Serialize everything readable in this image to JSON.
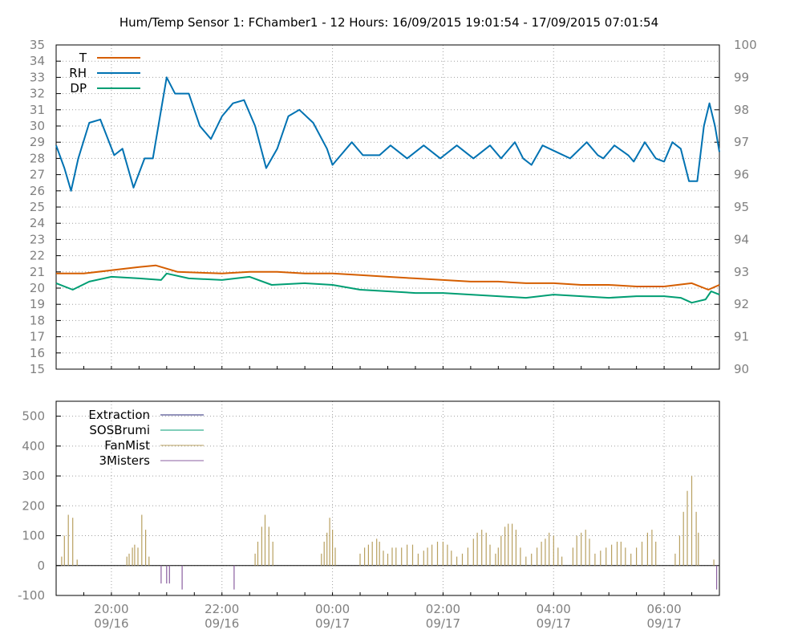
{
  "title": "Hum/Temp Sensor 1: FChamber1 - 12 Hours: 16/09/2015 19:01:54 - 17/09/2015 07:01:54",
  "chart_data": [
    {
      "type": "line",
      "title": "Hum/Temp Sensor 1: FChamber1 - 12 Hours: 16/09/2015 19:01:54 - 17/09/2015 07:01:54",
      "ylim": [
        15,
        35
      ],
      "y2lim": [
        90,
        100
      ],
      "y_ticks": [
        15,
        16,
        17,
        18,
        19,
        20,
        21,
        22,
        23,
        24,
        25,
        26,
        27,
        28,
        29,
        30,
        31,
        32,
        33,
        34,
        35
      ],
      "y2_ticks": [
        90,
        91,
        92,
        93,
        94,
        95,
        96,
        97,
        98,
        99,
        100
      ],
      "grid": true,
      "legend_position": "top-left",
      "series": [
        {
          "name": "T",
          "axis": "y",
          "color": "#d55e00",
          "points": [
            [
              0,
              20.9
            ],
            [
              0.5,
              20.9
            ],
            [
              1,
              21.1
            ],
            [
              1.5,
              21.3
            ],
            [
              1.8,
              21.4
            ],
            [
              2.2,
              21.0
            ],
            [
              3,
              20.9
            ],
            [
              3.5,
              21.0
            ],
            [
              4,
              21.0
            ],
            [
              4.5,
              20.9
            ],
            [
              5,
              20.9
            ],
            [
              5.5,
              20.8
            ],
            [
              6,
              20.7
            ],
            [
              6.5,
              20.6
            ],
            [
              7,
              20.5
            ],
            [
              7.5,
              20.4
            ],
            [
              8,
              20.4
            ],
            [
              8.5,
              20.3
            ],
            [
              9,
              20.3
            ],
            [
              9.5,
              20.2
            ],
            [
              10,
              20.2
            ],
            [
              10.5,
              20.1
            ],
            [
              11,
              20.1
            ],
            [
              11.5,
              20.3
            ],
            [
              11.8,
              19.9
            ],
            [
              12,
              20.2
            ]
          ]
        },
        {
          "name": "RH",
          "axis": "y2",
          "color": "#0072b2",
          "points": [
            [
              0,
              96.9
            ],
            [
              0.15,
              96.2
            ],
            [
              0.27,
              95.5
            ],
            [
              0.4,
              96.5
            ],
            [
              0.6,
              97.6
            ],
            [
              0.8,
              97.7
            ],
            [
              1.05,
              96.6
            ],
            [
              1.2,
              96.8
            ],
            [
              1.4,
              95.6
            ],
            [
              1.6,
              96.5
            ],
            [
              1.75,
              96.5
            ],
            [
              1.9,
              98.0
            ],
            [
              2.0,
              99.0
            ],
            [
              2.15,
              98.5
            ],
            [
              2.4,
              98.5
            ],
            [
              2.6,
              97.5
            ],
            [
              2.8,
              97.1
            ],
            [
              3.0,
              97.8
            ],
            [
              3.2,
              98.2
            ],
            [
              3.4,
              98.3
            ],
            [
              3.6,
              97.5
            ],
            [
              3.8,
              96.2
            ],
            [
              4.0,
              96.8
            ],
            [
              4.2,
              97.8
            ],
            [
              4.4,
              98.0
            ],
            [
              4.65,
              97.6
            ],
            [
              4.9,
              96.8
            ],
            [
              5.0,
              96.3
            ],
            [
              5.15,
              96.6
            ],
            [
              5.35,
              97.0
            ],
            [
              5.55,
              96.6
            ],
            [
              5.85,
              96.6
            ],
            [
              6.05,
              96.9
            ],
            [
              6.35,
              96.5
            ],
            [
              6.65,
              96.9
            ],
            [
              6.95,
              96.5
            ],
            [
              7.25,
              96.9
            ],
            [
              7.55,
              96.5
            ],
            [
              7.85,
              96.9
            ],
            [
              8.05,
              96.5
            ],
            [
              8.3,
              97.0
            ],
            [
              8.45,
              96.5
            ],
            [
              8.6,
              96.3
            ],
            [
              8.8,
              96.9
            ],
            [
              9.05,
              96.7
            ],
            [
              9.3,
              96.5
            ],
            [
              9.6,
              97.0
            ],
            [
              9.8,
              96.6
            ],
            [
              9.9,
              96.5
            ],
            [
              10.1,
              96.9
            ],
            [
              10.35,
              96.6
            ],
            [
              10.45,
              96.4
            ],
            [
              10.65,
              97.0
            ],
            [
              10.85,
              96.5
            ],
            [
              11.0,
              96.4
            ],
            [
              11.15,
              97.0
            ],
            [
              11.3,
              96.8
            ],
            [
              11.45,
              95.8
            ],
            [
              11.6,
              95.8
            ],
            [
              11.72,
              97.5
            ],
            [
              11.82,
              98.2
            ],
            [
              11.92,
              97.5
            ],
            [
              12,
              96.7
            ]
          ]
        },
        {
          "name": "DP",
          "axis": "y",
          "color": "#009e73",
          "points": [
            [
              0,
              20.3
            ],
            [
              0.3,
              19.9
            ],
            [
              0.6,
              20.4
            ],
            [
              1,
              20.7
            ],
            [
              1.5,
              20.6
            ],
            [
              1.9,
              20.5
            ],
            [
              2.0,
              20.9
            ],
            [
              2.4,
              20.6
            ],
            [
              3,
              20.5
            ],
            [
              3.5,
              20.7
            ],
            [
              3.9,
              20.2
            ],
            [
              4.5,
              20.3
            ],
            [
              5,
              20.2
            ],
            [
              5.5,
              19.9
            ],
            [
              6,
              19.8
            ],
            [
              6.5,
              19.7
            ],
            [
              7,
              19.7
            ],
            [
              7.5,
              19.6
            ],
            [
              8,
              19.5
            ],
            [
              8.5,
              19.4
            ],
            [
              9,
              19.6
            ],
            [
              9.5,
              19.5
            ],
            [
              10,
              19.4
            ],
            [
              10.5,
              19.5
            ],
            [
              11,
              19.5
            ],
            [
              11.3,
              19.4
            ],
            [
              11.5,
              19.1
            ],
            [
              11.75,
              19.3
            ],
            [
              11.85,
              19.8
            ],
            [
              12,
              19.6
            ]
          ]
        }
      ]
    },
    {
      "type": "bar",
      "ylim": [
        -100,
        550
      ],
      "y_ticks": [
        -100,
        0,
        100,
        200,
        300,
        400,
        500
      ],
      "x_ticks": [
        {
          "hour": 1,
          "time": "20:00",
          "date": "09/16"
        },
        {
          "hour": 3,
          "time": "22:00",
          "date": "09/16"
        },
        {
          "hour": 5,
          "time": "00:00",
          "date": "09/17"
        },
        {
          "hour": 7,
          "time": "02:00",
          "date": "09/17"
        },
        {
          "hour": 9,
          "time": "04:00",
          "date": "09/17"
        },
        {
          "hour": 11,
          "time": "06:00",
          "date": "09/17"
        }
      ],
      "grid": true,
      "legend_position": "top-left",
      "series": [
        {
          "name": "Extraction",
          "color": "#2a2a7a",
          "points": []
        },
        {
          "name": "SOSBrumi",
          "color": "#009e73",
          "points": []
        },
        {
          "name": "FanMist",
          "color": "#b8a060",
          "points": [
            [
              0.1,
              30
            ],
            [
              0.15,
              100
            ],
            [
              0.22,
              170
            ],
            [
              0.3,
              160
            ],
            [
              0.38,
              20
            ],
            [
              1.28,
              30
            ],
            [
              1.32,
              40
            ],
            [
              1.38,
              60
            ],
            [
              1.42,
              70
            ],
            [
              1.48,
              60
            ],
            [
              1.55,
              170
            ],
            [
              1.62,
              120
            ],
            [
              1.68,
              30
            ],
            [
              3.6,
              40
            ],
            [
              3.65,
              80
            ],
            [
              3.72,
              130
            ],
            [
              3.78,
              170
            ],
            [
              3.85,
              130
            ],
            [
              3.92,
              80
            ],
            [
              4.8,
              40
            ],
            [
              4.85,
              80
            ],
            [
              4.9,
              110
            ],
            [
              4.95,
              160
            ],
            [
              5.0,
              120
            ],
            [
              5.05,
              60
            ],
            [
              5.5,
              40
            ],
            [
              5.58,
              60
            ],
            [
              5.65,
              70
            ],
            [
              5.72,
              80
            ],
            [
              5.8,
              90
            ],
            [
              5.85,
              80
            ],
            [
              5.92,
              50
            ],
            [
              6.0,
              40
            ],
            [
              6.08,
              60
            ],
            [
              6.15,
              60
            ],
            [
              6.25,
              60
            ],
            [
              6.35,
              70
            ],
            [
              6.45,
              70
            ],
            [
              6.55,
              40
            ],
            [
              6.65,
              50
            ],
            [
              6.72,
              60
            ],
            [
              6.8,
              70
            ],
            [
              6.9,
              80
            ],
            [
              7.0,
              80
            ],
            [
              7.08,
              70
            ],
            [
              7.15,
              50
            ],
            [
              7.25,
              30
            ],
            [
              7.35,
              40
            ],
            [
              7.45,
              60
            ],
            [
              7.55,
              90
            ],
            [
              7.62,
              110
            ],
            [
              7.7,
              120
            ],
            [
              7.78,
              110
            ],
            [
              7.85,
              70
            ],
            [
              7.95,
              40
            ],
            [
              8.0,
              60
            ],
            [
              8.05,
              100
            ],
            [
              8.12,
              130
            ],
            [
              8.18,
              140
            ],
            [
              8.25,
              140
            ],
            [
              8.32,
              120
            ],
            [
              8.4,
              60
            ],
            [
              8.5,
              30
            ],
            [
              8.6,
              40
            ],
            [
              8.7,
              60
            ],
            [
              8.78,
              80
            ],
            [
              8.85,
              90
            ],
            [
              8.92,
              110
            ],
            [
              9.0,
              100
            ],
            [
              9.08,
              60
            ],
            [
              9.15,
              30
            ],
            [
              9.35,
              60
            ],
            [
              9.42,
              100
            ],
            [
              9.5,
              110
            ],
            [
              9.58,
              120
            ],
            [
              9.65,
              90
            ],
            [
              9.75,
              40
            ],
            [
              9.85,
              50
            ],
            [
              9.95,
              60
            ],
            [
              10.05,
              70
            ],
            [
              10.15,
              80
            ],
            [
              10.22,
              80
            ],
            [
              10.3,
              60
            ],
            [
              10.4,
              40
            ],
            [
              10.5,
              60
            ],
            [
              10.6,
              80
            ],
            [
              10.7,
              110
            ],
            [
              10.78,
              120
            ],
            [
              10.85,
              80
            ],
            [
              11.2,
              40
            ],
            [
              11.28,
              100
            ],
            [
              11.35,
              180
            ],
            [
              11.42,
              250
            ],
            [
              11.5,
              300
            ],
            [
              11.58,
              180
            ],
            [
              11.62,
              110
            ],
            [
              11.9,
              20
            ]
          ]
        },
        {
          "name": "3Misters",
          "color": "#8b5fa0",
          "points": [
            [
              1.9,
              -60
            ],
            [
              2.0,
              -60
            ],
            [
              2.05,
              -60
            ],
            [
              2.28,
              -80
            ],
            [
              3.22,
              -80
            ],
            [
              11.95,
              -80
            ]
          ]
        }
      ]
    }
  ]
}
